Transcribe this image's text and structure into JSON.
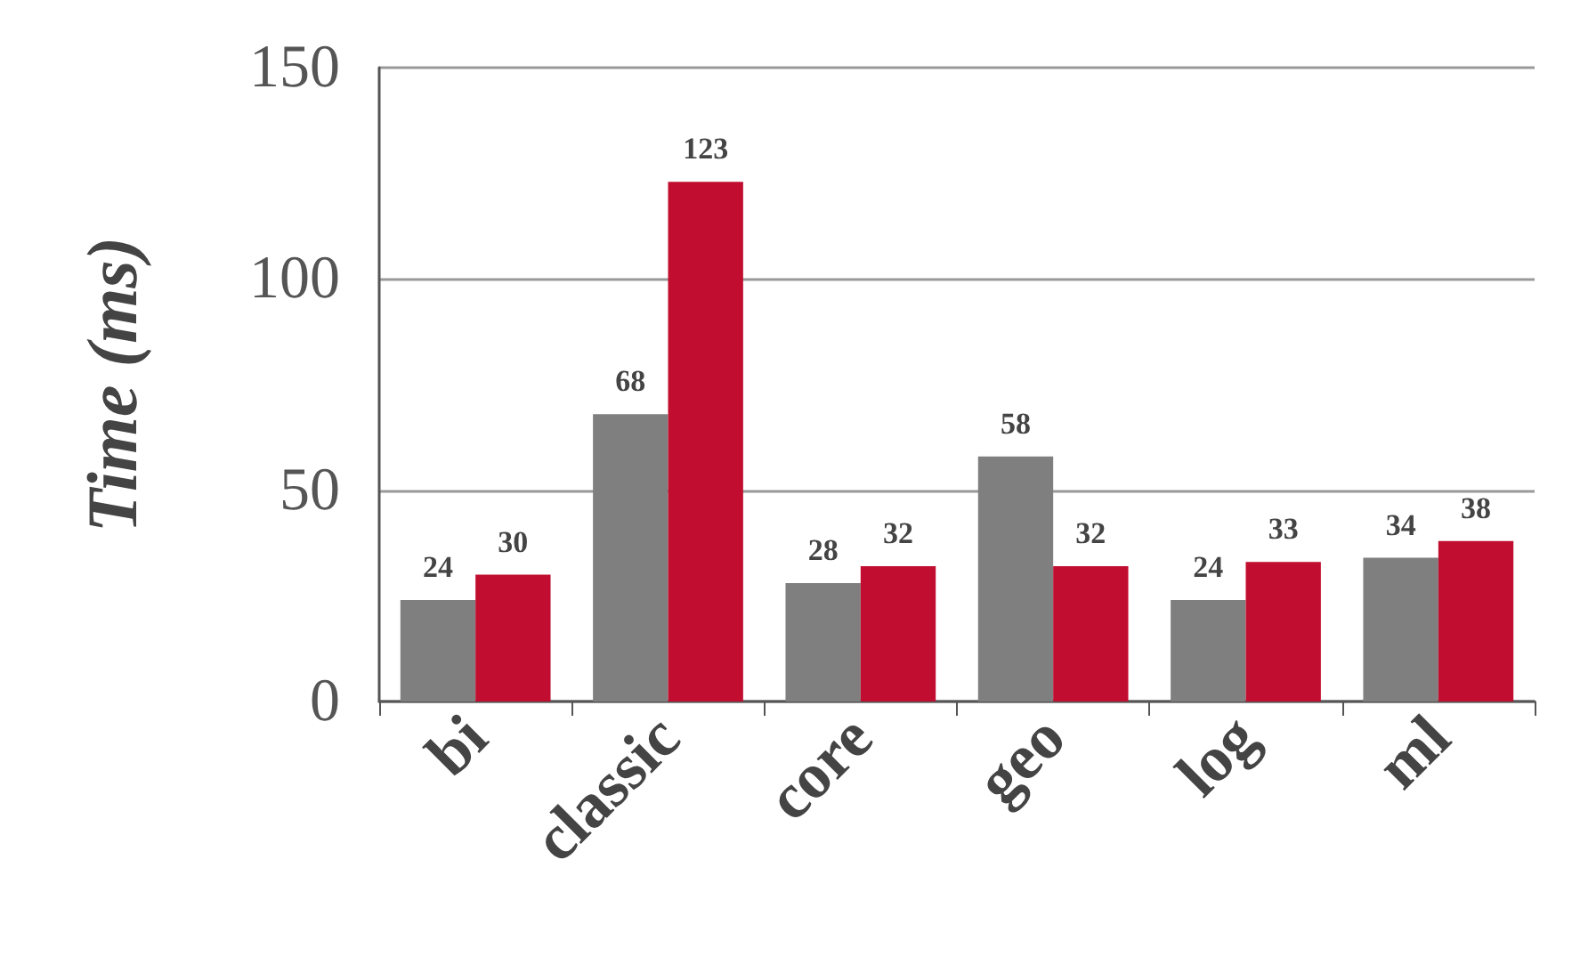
{
  "chart_data": {
    "type": "bar",
    "ylabel": "Time (ms)",
    "categories": [
      "bi",
      "classic",
      "core",
      "geo",
      "log",
      "ml"
    ],
    "series": [
      {
        "color": "#7f7f7f",
        "values": [
          24,
          68,
          28,
          58,
          24,
          34
        ]
      },
      {
        "color": "#c10e30",
        "values": [
          30,
          123,
          32,
          32,
          33,
          38
        ]
      }
    ],
    "ylim": [
      0,
      150
    ],
    "yticks": [
      0,
      50,
      100,
      150
    ],
    "grid": "y",
    "data_labels": true
  }
}
